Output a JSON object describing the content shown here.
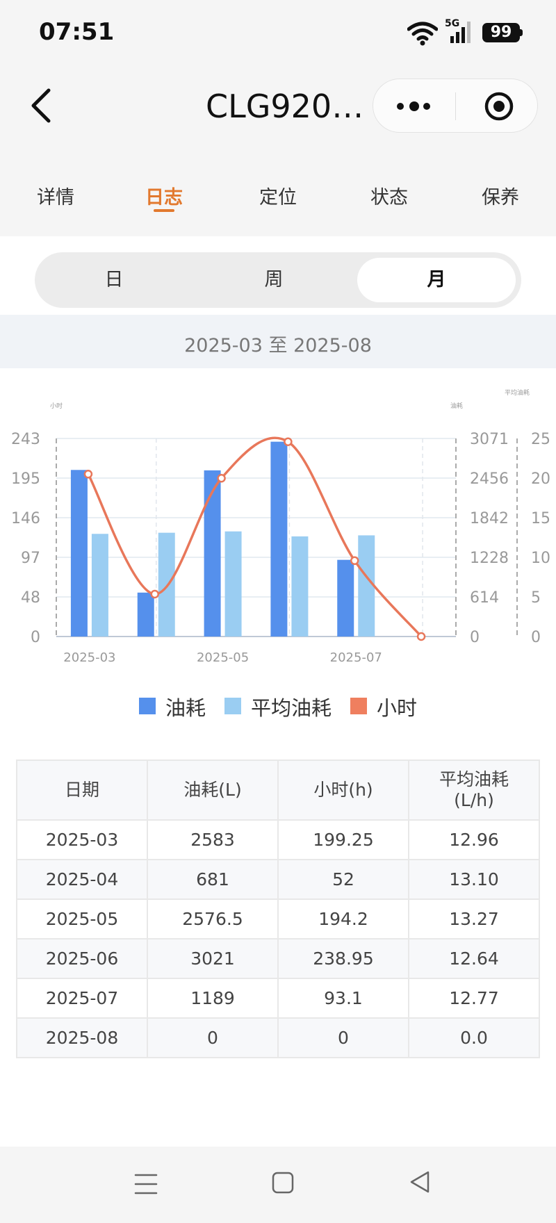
{
  "status_bar": {
    "time": "07:51",
    "network": "5G",
    "battery": "99"
  },
  "header": {
    "title": "CLG920…",
    "back_icon": "chevron-left-icon",
    "more_icon": "more-dots-icon",
    "close_icon": "target-close-icon"
  },
  "tabs": [
    {
      "label": "详情"
    },
    {
      "label": "日志",
      "active": true
    },
    {
      "label": "定位"
    },
    {
      "label": "状态"
    },
    {
      "label": "保养"
    }
  ],
  "period_switch": [
    {
      "label": "日"
    },
    {
      "label": "周"
    },
    {
      "label": "月",
      "active": true
    }
  ],
  "date_range": "2025-03 至 2025-08",
  "chart_data": {
    "type": "bar",
    "categories": [
      "2025-03",
      "2025-04",
      "2025-05",
      "2025-06",
      "2025-07",
      "2025-08"
    ],
    "x_tick_labels": [
      "2025-03",
      "2025-05",
      "2025-07"
    ],
    "series": [
      {
        "name": "油耗",
        "type": "bar",
        "axis": "油耗",
        "color": "#5590ec",
        "values": [
          2583,
          681,
          2576.5,
          3021,
          1189,
          0
        ]
      },
      {
        "name": "平均油耗",
        "type": "bar",
        "axis": "平均油耗",
        "color": "#9acdf2",
        "values": [
          12.96,
          13.1,
          13.27,
          12.64,
          12.77,
          0.0
        ]
      },
      {
        "name": "小时",
        "type": "line",
        "axis": "小时",
        "smooth": true,
        "color": "#e8775a",
        "values": [
          199.25,
          52,
          194.2,
          238.95,
          93.1,
          0
        ]
      }
    ],
    "axes": {
      "left": {
        "label": "小时",
        "ticks": [
          "0",
          "48",
          "97",
          "146",
          "195",
          "243"
        ],
        "ylim": [
          0,
          243
        ]
      },
      "right": {
        "label": "油耗",
        "ticks": [
          "0",
          "614",
          "1228",
          "1842",
          "2456",
          "3071"
        ],
        "ylim": [
          0,
          3071
        ]
      },
      "right2": {
        "label": "平均油耗",
        "ticks": [
          "0",
          "5",
          "10",
          "15",
          "20",
          "25"
        ],
        "ylim": [
          0,
          25
        ]
      }
    },
    "grid": true,
    "legend_position": "bottom"
  },
  "legend": [
    {
      "label": "油耗",
      "color": "#5590ec"
    },
    {
      "label": "平均油耗",
      "color": "#9acdf2"
    },
    {
      "label": "小时",
      "color": "#ef7f5f"
    }
  ],
  "table": {
    "headers": [
      "日期",
      "油耗(L)",
      "小时(h)",
      "平均油耗\n(L/h)"
    ],
    "rows": [
      [
        "2025-03",
        "2583",
        "199.25",
        "12.96"
      ],
      [
        "2025-04",
        "681",
        "52",
        "13.10"
      ],
      [
        "2025-05",
        "2576.5",
        "194.2",
        "13.27"
      ],
      [
        "2025-06",
        "3021",
        "238.95",
        "12.64"
      ],
      [
        "2025-07",
        "1189",
        "93.1",
        "12.77"
      ],
      [
        "2025-08",
        "0",
        "0",
        "0.0"
      ]
    ]
  },
  "system_nav": {
    "menu_icon": "menu-icon",
    "home_icon": "home-square-icon",
    "back_icon": "back-triangle-icon"
  }
}
